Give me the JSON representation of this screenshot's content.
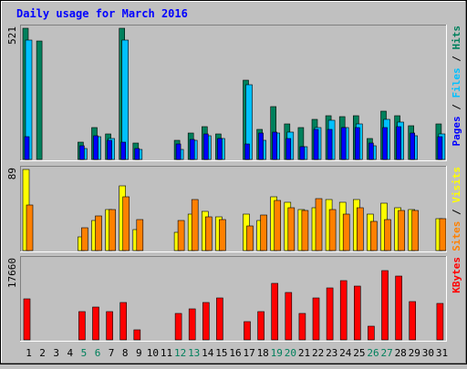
{
  "chart_data": [
    {
      "type": "bar",
      "title": "Daily usage for March 2016",
      "ylabel_top": "521",
      "ymax": 521,
      "series": [
        {
          "name": "Hits",
          "color": "#00805C",
          "values": [
            521,
            470,
            null,
            null,
            70,
            125,
            100,
            521,
            65,
            null,
            null,
            75,
            105,
            130,
            100,
            null,
            315,
            120,
            210,
            140,
            125,
            160,
            175,
            170,
            175,
            85,
            190,
            175,
            135,
            null,
            140
          ]
        },
        {
          "name": "Files",
          "color": "#00C0FF",
          "values": [
            475,
            null,
            null,
            null,
            45,
            90,
            85,
            475,
            40,
            null,
            null,
            40,
            75,
            95,
            85,
            null,
            295,
            75,
            105,
            110,
            50,
            125,
            155,
            125,
            140,
            55,
            160,
            150,
            95,
            null,
            100
          ]
        },
        {
          "name": "Pages",
          "color": "#0000FF",
          "values": [
            90,
            null,
            null,
            null,
            55,
            95,
            75,
            70,
            45,
            null,
            null,
            60,
            80,
            100,
            85,
            null,
            60,
            105,
            110,
            85,
            50,
            120,
            120,
            125,
            125,
            65,
            125,
            130,
            105,
            null,
            90
          ]
        }
      ],
      "legend_labels": [
        "Pages",
        "/",
        "Files",
        "/",
        "Hits"
      ]
    },
    {
      "type": "bar",
      "ylabel_top": "89",
      "ymax": 89,
      "series": [
        {
          "name": "Visits",
          "color": "#FFFF00",
          "values": [
            89,
            null,
            null,
            null,
            15,
            33,
            45,
            71,
            23,
            null,
            null,
            20,
            40,
            43,
            37,
            null,
            40,
            33,
            59,
            53,
            45,
            47,
            56,
            53,
            56,
            40,
            52,
            47,
            45,
            null,
            35
          ]
        },
        {
          "name": "Sites",
          "color": "#FF8000",
          "values": [
            50,
            null,
            null,
            null,
            25,
            38,
            45,
            59,
            34,
            null,
            null,
            33,
            56,
            37,
            34,
            null,
            27,
            39,
            55,
            47,
            44,
            57,
            45,
            40,
            47,
            32,
            34,
            44,
            44,
            null,
            35
          ]
        }
      ],
      "legend_labels": [
        "Sites",
        "/",
        "Visits"
      ]
    },
    {
      "type": "bar",
      "ylabel_top": "17660",
      "ymax": 17660,
      "series": [
        {
          "name": "KBytes",
          "color": "#FF0000",
          "values": [
            9000,
            null,
            null,
            null,
            6300,
            7300,
            6300,
            8300,
            2300,
            null,
            null,
            5800,
            6800,
            8300,
            9300,
            null,
            4000,
            6300,
            12500,
            10500,
            5800,
            9300,
            11400,
            13100,
            11900,
            3000,
            15300,
            14000,
            8500,
            null,
            8100
          ]
        }
      ],
      "legend_labels": [
        "KBytes"
      ]
    }
  ],
  "x_labels": [
    "1",
    "2",
    "3",
    "4",
    "5",
    "6",
    "7",
    "8",
    "9",
    "10",
    "11",
    "12",
    "13",
    "14",
    "15",
    "16",
    "17",
    "18",
    "19",
    "20",
    "21",
    "22",
    "23",
    "24",
    "25",
    "26",
    "27",
    "28",
    "29",
    "30",
    "31"
  ],
  "weekend_days": [
    "5",
    "6",
    "12",
    "13",
    "19",
    "20",
    "26",
    "27"
  ],
  "colors": {
    "background": "#C0C0C0",
    "title": "#0000FF",
    "axis_label": "#000000",
    "weekend_label": "#00805C",
    "legend_separator": "#000000"
  }
}
